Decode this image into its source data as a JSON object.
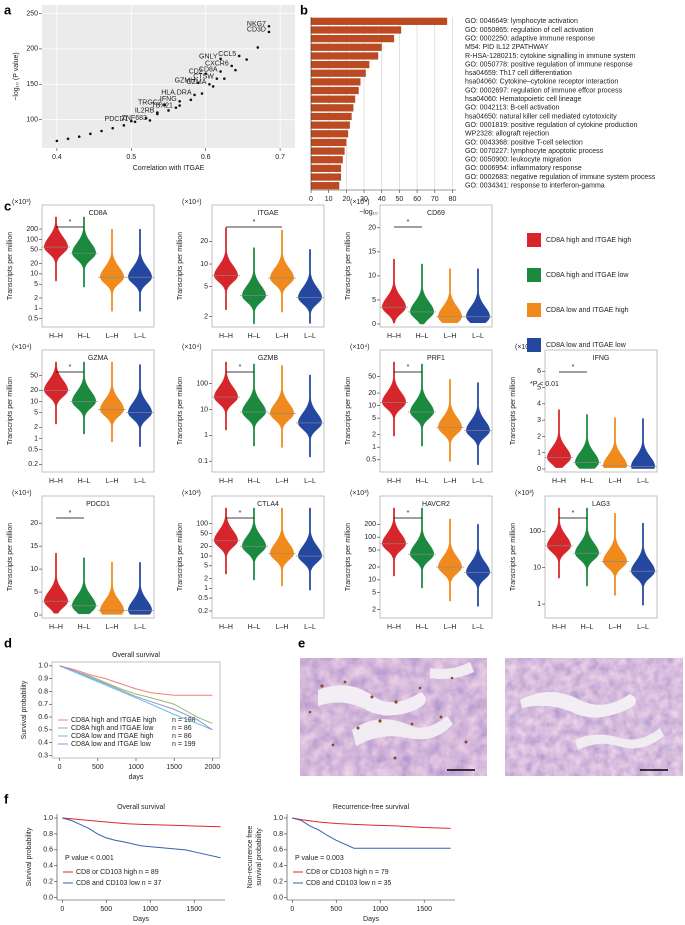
{
  "panel_labels": [
    "a",
    "b",
    "c",
    "d",
    "e",
    "f"
  ],
  "violin_legend": {
    "series": [
      {
        "name": "CD8A high and ITGAE high",
        "color": "#d7262b"
      },
      {
        "name": "CD8A high and ITGAE low",
        "color": "#1b8a3e"
      },
      {
        "name": "CD8A low and ITGAE high",
        "color": "#f08a1d"
      },
      {
        "name": "CD8A low and ITGAE low",
        "color": "#2447a0"
      }
    ],
    "note": "*P < 0.01"
  },
  "chart_data": [
    {
      "type": "scatter",
      "xlabel": "Correlation with ITGAE",
      "ylabel": "−log₁₀ (P value)",
      "xlim": [
        0.38,
        0.72
      ],
      "xticks": [
        0.4,
        0.5,
        0.6,
        0.7
      ],
      "ylim": [
        60,
        262
      ],
      "yticks": [
        100,
        150,
        200,
        250
      ],
      "grid": true,
      "color": "#111111",
      "x": [
        0.4,
        0.415,
        0.43,
        0.445,
        0.46,
        0.475,
        0.49,
        0.505,
        0.52,
        0.535,
        0.55,
        0.565,
        0.58,
        0.595,
        0.61,
        0.625,
        0.64,
        0.655,
        0.67,
        0.5,
        0.525,
        0.535,
        0.56,
        0.545,
        0.565,
        0.585,
        0.605,
        0.59,
        0.615,
        0.6,
        0.62,
        0.635,
        0.62,
        0.645,
        0.685,
        0.685
      ],
      "y": [
        70,
        73,
        76,
        80,
        84,
        88,
        92,
        97,
        102,
        108,
        113,
        120,
        128,
        137,
        147,
        158,
        170,
        185,
        202,
        98,
        99,
        110,
        117,
        121,
        126,
        135,
        150,
        152,
        158,
        165,
        168,
        176,
        186,
        190,
        224,
        232
      ],
      "point_labels": [
        null,
        null,
        null,
        null,
        null,
        null,
        null,
        null,
        null,
        null,
        null,
        null,
        null,
        null,
        null,
        null,
        null,
        null,
        null,
        "PDCD1",
        "ZNF683",
        "IL2RB",
        "TBX21",
        "TRGC2",
        "IFNG",
        "HLA.DRA",
        "GZMA",
        "GZMH",
        "CTSW",
        "CD2",
        "CD8A",
        "CXCR6",
        "GNLY",
        "CCL5",
        "CD3D",
        "NKG7"
      ]
    },
    {
      "type": "barh",
      "xlabel": "−log₁₀ (P value)",
      "color": "#bb4a22",
      "grid": true,
      "xlim": [
        0,
        82
      ],
      "xticks": [
        0,
        10,
        20,
        30,
        40,
        50,
        60,
        70,
        80
      ],
      "categories": [
        "GO: 0046649: lymphocyte activation",
        "GO: 0050865: regulation of cell activation",
        "GO: 0002250: adaptive immune response",
        "M54: PID IL12 2PATHWAY",
        "R-HSA-1280215: cytokine signalling in immune system",
        "GO: 0050778: positive regulation of immune response",
        "hsa04659: Th17 cell differentiation",
        "hsa04060: Cytokine–cytokine receptor interaction",
        "GO: 0002697: regulation of immune effcor process",
        "hsa04060: Hematopoietic cell lineage",
        "GO: 0042113: B-cell activation",
        "hsa04650: natural killer cell mediated cytotoxicity",
        "GO: 0001819: positive regulation of cytokine production",
        "WP2328: allograft rejection",
        "GO: 0043368: positive T-cell selection",
        "GO: 0070227: lymphocyte apoptotic process",
        "GO: 0050900: leukocyte migration",
        "GO: 0006954: inflammatory response",
        "GO: 0002683: negative regulation of immune system process",
        "GO: 0034341: response to interferon-gamma"
      ],
      "values": [
        77,
        51,
        47,
        40,
        38,
        33,
        31,
        28,
        27,
        25,
        24,
        23,
        22,
        21,
        20,
        19,
        18,
        17,
        17,
        16
      ]
    },
    {
      "type": "violin",
      "title": "CD8A",
      "y_unit": "(×10³)",
      "ylabel": "Transcripts per million",
      "log_scale": true,
      "categories": [
        "H–H",
        "H–L",
        "L–H",
        "L–L"
      ],
      "values": [
        60,
        40,
        8,
        8
      ],
      "ylim": [
        0.35,
        300
      ],
      "yticks": [
        0.5,
        1,
        2,
        5,
        10,
        20,
        50,
        100,
        200
      ],
      "significance": {
        "label": "*",
        "groups": [
          0,
          1
        ]
      }
    },
    {
      "type": "violin",
      "title": "ITGAE",
      "y_unit": "(×10⁴)",
      "ylabel": "Transcripts per million",
      "log_scale": true,
      "categories": [
        "H–H",
        "H–L",
        "L–H",
        "L–L"
      ],
      "values": [
        7,
        3.8,
        6.5,
        3.6
      ],
      "ylim": [
        1.6,
        35
      ],
      "yticks": [
        2,
        5,
        10,
        20
      ],
      "significance": {
        "label": "*",
        "groups": [
          0,
          2
        ]
      }
    },
    {
      "type": "violin",
      "title": "CD69",
      "y_unit": "(×10⁴)",
      "ylabel": "Transcripts per million",
      "log_scale": false,
      "categories": [
        "H–H",
        "H–L",
        "L–H",
        "L–L"
      ],
      "values": [
        3.5,
        2.5,
        1.5,
        1.5
      ],
      "ylim": [
        0,
        21
      ],
      "yticks": [
        0,
        5,
        10,
        15,
        20
      ],
      "significance": {
        "label": "*",
        "groups": [
          0,
          1
        ]
      }
    },
    {
      "type": "violin",
      "title": "GZMA",
      "y_unit": "(×10⁴)",
      "ylabel": "Transcripts per million",
      "log_scale": true,
      "categories": [
        "H–H",
        "H–L",
        "L–H",
        "L–L"
      ],
      "values": [
        20,
        10,
        6,
        5
      ],
      "ylim": [
        0.15,
        80
      ],
      "yticks": [
        0.2,
        0.5,
        1,
        2,
        5,
        10,
        20,
        50
      ],
      "significance": {
        "label": "*",
        "groups": [
          0,
          1
        ]
      }
    },
    {
      "type": "violin",
      "title": "GZMB",
      "y_unit": "(×10⁴)",
      "ylabel": "Transcripts per million",
      "log_scale": true,
      "categories": [
        "H–H",
        "H–L",
        "L–H",
        "L–L"
      ],
      "values": [
        30,
        8,
        7,
        3
      ],
      "ylim": [
        0.05,
        400
      ],
      "yticks": [
        0.1,
        1,
        10,
        100
      ],
      "significance": {
        "label": "*",
        "groups": [
          0,
          1
        ]
      }
    },
    {
      "type": "violin",
      "title": "PRF1",
      "y_unit": "(×10⁴)",
      "ylabel": "Transcripts per million",
      "log_scale": true,
      "categories": [
        "H–H",
        "H–L",
        "L–H",
        "L–L"
      ],
      "values": [
        12,
        7,
        3,
        2.5
      ],
      "ylim": [
        0.3,
        80
      ],
      "yticks": [
        0.5,
        1,
        2,
        5,
        10,
        20,
        50
      ],
      "significance": {
        "label": "*",
        "groups": [
          0,
          1
        ]
      }
    },
    {
      "type": "violin",
      "title": "IFNG",
      "y_unit": "(×10⁴)",
      "ylabel": "Transcripts per million",
      "log_scale": false,
      "categories": [
        "H–H",
        "H–L",
        "L–H",
        "L–L"
      ],
      "values": [
        0.7,
        0.4,
        0.2,
        0.15
      ],
      "ylim": [
        0,
        6.2
      ],
      "yticks": [
        0,
        1,
        2,
        3,
        4,
        5,
        6
      ],
      "significance": {
        "label": "*",
        "groups": [
          0,
          1
        ]
      }
    },
    {
      "type": "violin",
      "title": "PDCD1",
      "y_unit": "(×10⁴)",
      "ylabel": "Transcripts per million",
      "log_scale": false,
      "categories": [
        "H–H",
        "H–L",
        "L–H",
        "L–L"
      ],
      "values": [
        3,
        2,
        1,
        1
      ],
      "ylim": [
        0,
        22
      ],
      "yticks": [
        0,
        5,
        10,
        15,
        20
      ],
      "significance": {
        "label": "*",
        "groups": [
          0,
          1
        ]
      }
    },
    {
      "type": "violin",
      "title": "CTLA4",
      "y_unit": "(×10³)",
      "ylabel": "Transcripts per million",
      "log_scale": true,
      "categories": [
        "H–H",
        "H–L",
        "L–H",
        "L–L"
      ],
      "values": [
        30,
        20,
        12,
        10
      ],
      "ylim": [
        0.15,
        200
      ],
      "yticks": [
        0.2,
        0.5,
        1,
        2,
        5,
        10,
        20,
        50,
        100
      ],
      "significance": {
        "label": "*",
        "groups": [
          0,
          1
        ]
      }
    },
    {
      "type": "violin",
      "title": "HAVCR2",
      "y_unit": "(×10³)",
      "ylabel": "Transcripts per million",
      "log_scale": true,
      "categories": [
        "H–H",
        "H–L",
        "L–H",
        "L–L"
      ],
      "values": [
        70,
        40,
        20,
        15
      ],
      "ylim": [
        1.5,
        350
      ],
      "yticks": [
        2,
        5,
        10,
        20,
        50,
        100,
        200
      ],
      "significance": {
        "label": "*",
        "groups": [
          0,
          1
        ]
      }
    },
    {
      "type": "violin",
      "title": "LAG3",
      "y_unit": "(×10³)",
      "ylabel": "Transcripts per million",
      "log_scale": true,
      "categories": [
        "H–H",
        "H–L",
        "L–H",
        "L–L"
      ],
      "values": [
        40,
        25,
        15,
        8
      ],
      "ylim": [
        0.5,
        300
      ],
      "yticks": [
        1,
        10,
        100
      ],
      "significance": {
        "label": "*",
        "groups": [
          0,
          1
        ]
      }
    },
    {
      "type": "km",
      "title": "Overall survival",
      "xlabel": "days",
      "ylabel": "Survival probability",
      "xlim": [
        -100,
        2100
      ],
      "xticks": [
        0,
        500,
        1000,
        1500,
        2000
      ],
      "ylim": [
        0.28,
        1.03
      ],
      "yticks": [
        0.3,
        0.4,
        0.5,
        0.6,
        0.7,
        0.8,
        0.9,
        {
          "value": 1,
          "label": "1.0"
        }
      ],
      "series": [
        {
          "name": "CD8A high and ITGAE high",
          "n_label": "n = 198",
          "color": "#f07d7d",
          "x": [
            0,
            200,
            400,
            600,
            800,
            1000,
            1200,
            1500,
            1800,
            2000
          ],
          "y": [
            1,
            0.97,
            0.93,
            0.9,
            0.86,
            0.82,
            0.79,
            0.77,
            0.77,
            0.77
          ]
        },
        {
          "name": "CD8A high and ITGAE low",
          "n_label": "n = 86",
          "color": "#8fbf6a",
          "x": [
            0,
            200,
            400,
            600,
            800,
            1000,
            1200,
            1500,
            1800,
            2000
          ],
          "y": [
            1,
            0.96,
            0.92,
            0.87,
            0.82,
            0.78,
            0.75,
            0.7,
            0.6,
            0.55
          ]
        },
        {
          "name": "CD8A low and ITGAE high",
          "n_label": "n = 86",
          "color": "#66c2d6",
          "x": [
            0,
            200,
            400,
            600,
            800,
            1000,
            1200,
            1500,
            1800,
            2000
          ],
          "y": [
            1,
            0.95,
            0.9,
            0.85,
            0.8,
            0.75,
            0.7,
            0.62,
            0.55,
            0.5
          ]
        },
        {
          "name": "CD8A low and ITGAE low",
          "n_label": "n = 199",
          "color": "#9a8fd6",
          "x": [
            0,
            200,
            400,
            600,
            800,
            1000,
            1200,
            1500,
            1800,
            2000
          ],
          "y": [
            1,
            0.96,
            0.91,
            0.86,
            0.81,
            0.76,
            0.72,
            0.66,
            0.58,
            0.5
          ]
        }
      ]
    },
    {
      "type": "km",
      "title": "Overall survival",
      "xlabel": "Days",
      "ylabel": [
        "Survival probability"
      ],
      "annotation": "P value < 0.001",
      "xlim": [
        -60,
        1850
      ],
      "xticks": [
        0,
        500,
        1000,
        1500
      ],
      "ylim": [
        -0.03,
        1.05
      ],
      "yticks": [
        {
          "value": 0,
          "label": "0.0"
        },
        0.2,
        0.4,
        0.6,
        0.8,
        {
          "value": 1,
          "label": "1.0"
        }
      ],
      "series": [
        {
          "name": "CD8 or CD103 high n = 89",
          "color": "#e3262b",
          "x": [
            0,
            100,
            300,
            500,
            700,
            900,
            1200,
            1500,
            1800
          ],
          "y": [
            1,
            0.99,
            0.97,
            0.95,
            0.93,
            0.92,
            0.91,
            0.9,
            0.89
          ]
        },
        {
          "name": "CD8 and CD103 low n = 37",
          "color": "#3a5fad",
          "x": [
            0,
            100,
            200,
            300,
            400,
            500,
            600,
            700,
            900,
            1100,
            1400,
            1600,
            1800
          ],
          "y": [
            1,
            0.97,
            0.92,
            0.87,
            0.8,
            0.75,
            0.72,
            0.7,
            0.65,
            0.63,
            0.6,
            0.55,
            0.5
          ]
        }
      ]
    },
    {
      "type": "km",
      "title": "Recurrence-free survival",
      "xlabel": "Days",
      "ylabel": [
        "Non-recurrence free",
        "survival probability"
      ],
      "annotation": "P value = 0.003",
      "xlim": [
        -60,
        1850
      ],
      "xticks": [
        0,
        500,
        1000,
        1500
      ],
      "ylim": [
        -0.03,
        1.05
      ],
      "yticks": [
        {
          "value": 0,
          "label": "0.0"
        },
        0.2,
        0.4,
        0.6,
        0.8,
        {
          "value": 1,
          "label": "1.0"
        }
      ],
      "series": [
        {
          "name": "CD8 or CD103 high n = 79",
          "color": "#e3262b",
          "x": [
            0,
            100,
            300,
            500,
            700,
            900,
            1200,
            1500,
            1800
          ],
          "y": [
            1,
            0.98,
            0.95,
            0.93,
            0.92,
            0.91,
            0.9,
            0.88,
            0.87
          ]
        },
        {
          "name": "CD8 and CD103 low n = 35",
          "color": "#3a5fad",
          "x": [
            0,
            100,
            200,
            300,
            400,
            500,
            700,
            900,
            1800
          ],
          "y": [
            1,
            0.97,
            0.9,
            0.85,
            0.78,
            0.72,
            0.62,
            0.62,
            0.62
          ]
        }
      ]
    }
  ]
}
